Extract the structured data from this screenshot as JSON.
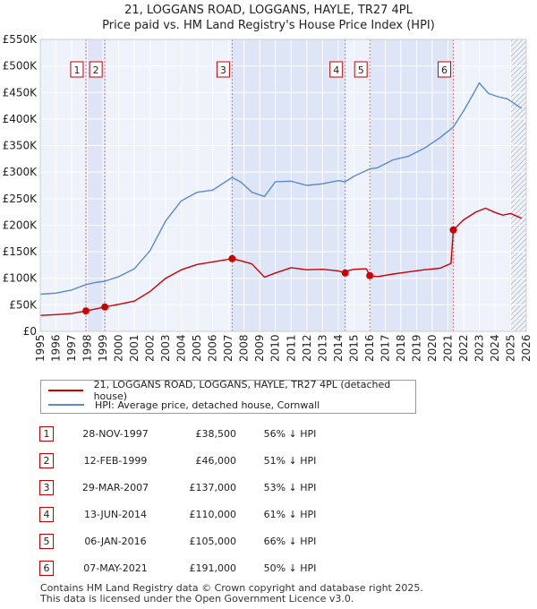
{
  "chart_data": {
    "type": "line",
    "title": "21, LOGGANS ROAD, LOGGANS, HAYLE, TR27 4PL",
    "subtitle": "Price paid vs. HM Land Registry's House Price Index (HPI)",
    "xlim": [
      1995,
      2026
    ],
    "ylim": [
      0,
      550000
    ],
    "yticks": [
      0,
      50000,
      100000,
      150000,
      200000,
      250000,
      300000,
      350000,
      400000,
      450000,
      500000,
      550000
    ],
    "ytick_labels": [
      "£0",
      "£50K",
      "£100K",
      "£150K",
      "£200K",
      "£250K",
      "£300K",
      "£350K",
      "£400K",
      "£450K",
      "£500K",
      "£550K"
    ],
    "xticks": [
      "1995",
      "1996",
      "1997",
      "1998",
      "1999",
      "2000",
      "2001",
      "2002",
      "2003",
      "2004",
      "2005",
      "2006",
      "2007",
      "2008",
      "2009",
      "2010",
      "2011",
      "2012",
      "2013",
      "2014",
      "2015",
      "2016",
      "2017",
      "2018",
      "2019",
      "2020",
      "2021",
      "2022",
      "2023",
      "2024",
      "2025",
      "2026"
    ],
    "series": [
      {
        "name": "21, LOGGANS ROAD, LOGGANS, HAYLE, TR27 4PL (detached house)",
        "color": "#cc0000",
        "x": [
          1995.0,
          1996.0,
          1997.0,
          1997.91,
          1998.5,
          1999.12,
          2000.0,
          2001.0,
          2002.0,
          2003.0,
          2004.0,
          2005.0,
          2006.0,
          2007.24,
          2007.8,
          2008.5,
          2009.3,
          2010.0,
          2011.0,
          2012.0,
          2013.0,
          2014.0,
          2014.45,
          2014.6,
          2015.0,
          2015.8,
          2016.02,
          2016.5,
          2017.5,
          2018.5,
          2019.5,
          2020.5,
          2021.2,
          2021.35,
          2022.0,
          2022.8,
          2023.4,
          2024.0,
          2024.5,
          2025.0,
          2025.7
        ],
        "y": [
          30000,
          31500,
          33500,
          38500,
          42000,
          46000,
          51000,
          57000,
          75000,
          100000,
          116000,
          126000,
          131000,
          137000,
          133000,
          127000,
          102000,
          110000,
          120000,
          116000,
          117000,
          114000,
          110000,
          114000,
          117000,
          118000,
          105000,
          103000,
          108000,
          112000,
          116000,
          119000,
          128000,
          191000,
          210000,
          225000,
          232000,
          224000,
          219000,
          222000,
          213000
        ]
      },
      {
        "name": "HPI: Average price, detached house, Cornwall",
        "color": "#5b8ac9",
        "x": [
          1995.0,
          1996.0,
          1997.0,
          1997.91,
          1998.5,
          1999.12,
          2000.0,
          2001.0,
          2002.0,
          2003.0,
          2004.0,
          2005.0,
          2006.0,
          2007.24,
          2007.8,
          2008.5,
          2009.3,
          2010.0,
          2011.0,
          2012.0,
          2013.0,
          2014.0,
          2014.45,
          2015.0,
          2016.02,
          2016.5,
          2017.5,
          2018.5,
          2019.5,
          2020.5,
          2021.35,
          2022.0,
          2022.6,
          2023.0,
          2023.6,
          2024.2,
          2024.8,
          2025.3,
          2025.7
        ],
        "y": [
          70000,
          72000,
          78000,
          88000,
          92000,
          94500,
          103000,
          118000,
          152000,
          208000,
          246000,
          262000,
          266000,
          290000,
          281000,
          262000,
          254000,
          282000,
          283000,
          275000,
          278000,
          284000,
          282000,
          292000,
          306000,
          308000,
          323000,
          330000,
          345000,
          365000,
          385000,
          415000,
          446000,
          468000,
          448000,
          442000,
          438000,
          428000,
          420000
        ]
      }
    ],
    "sales": [
      {
        "num": "1",
        "date": "28-NOV-1997",
        "price": "£38,500",
        "hpi": "56% ↓ HPI",
        "x": 1997.91,
        "y": 38500
      },
      {
        "num": "2",
        "date": "12-FEB-1999",
        "price": "£46,000",
        "hpi": "51% ↓ HPI",
        "x": 1999.12,
        "y": 46000
      },
      {
        "num": "3",
        "date": "29-MAR-2007",
        "price": "£137,000",
        "hpi": "53% ↓ HPI",
        "x": 2007.24,
        "y": 137000
      },
      {
        "num": "4",
        "date": "13-JUN-2014",
        "price": "£110,000",
        "hpi": "61% ↓ HPI",
        "x": 2014.45,
        "y": 110000
      },
      {
        "num": "5",
        "date": "06-JAN-2016",
        "price": "£105,000",
        "hpi": "66% ↓ HPI",
        "x": 2016.02,
        "y": 105000
      },
      {
        "num": "6",
        "date": "07-MAY-2021",
        "price": "£191,000",
        "hpi": "50% ↓ HPI",
        "x": 2021.35,
        "y": 191000
      }
    ],
    "colors": {
      "plot_bg": "#eef2fb",
      "band": "#dde5f7",
      "sale_line": "#e07070",
      "grid": "#ffffff"
    },
    "hatch_from": 2025.0
  },
  "footer": {
    "line1": "Contains HM Land Registry data © Crown copyright and database right 2025.",
    "line2": "This data is licensed under the Open Government Licence v3.0."
  }
}
